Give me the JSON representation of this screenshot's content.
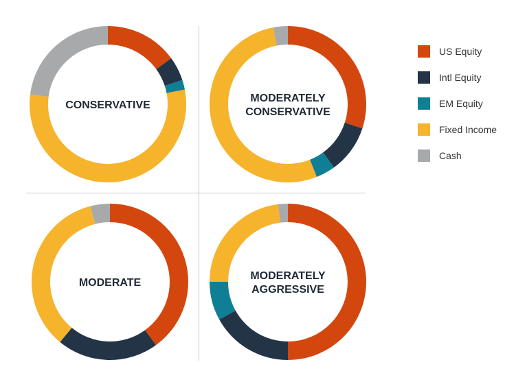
{
  "chart_data": {
    "type": "pie",
    "categories": [
      "US Equity",
      "Intl Equity",
      "EM Equity",
      "Fixed Income",
      "Cash"
    ],
    "colors": [
      "#d3470f",
      "#243447",
      "#0f7f95",
      "#f6b32c",
      "#a7a9ab"
    ],
    "legend_position": "right",
    "charts": [
      {
        "title": "CONSERVATIVE",
        "title_lines": [
          "CONSERVATIVE"
        ],
        "values": [
          15,
          5,
          2,
          55,
          23
        ]
      },
      {
        "title": "MODERATELY CONSERVATIVE",
        "title_lines": [
          "MODERATELY",
          "CONSERVATIVE"
        ],
        "values": [
          30,
          10,
          4,
          53,
          3
        ]
      },
      {
        "title": "MODERATE",
        "title_lines": [
          "MODERATE"
        ],
        "values": [
          40,
          21,
          0,
          35,
          4
        ]
      },
      {
        "title": "MODERATELY AGGRESSIVE",
        "title_lines": [
          "MODERATELY",
          "AGGRESSIVE"
        ],
        "values": [
          50,
          17,
          8,
          23,
          2
        ]
      }
    ]
  }
}
